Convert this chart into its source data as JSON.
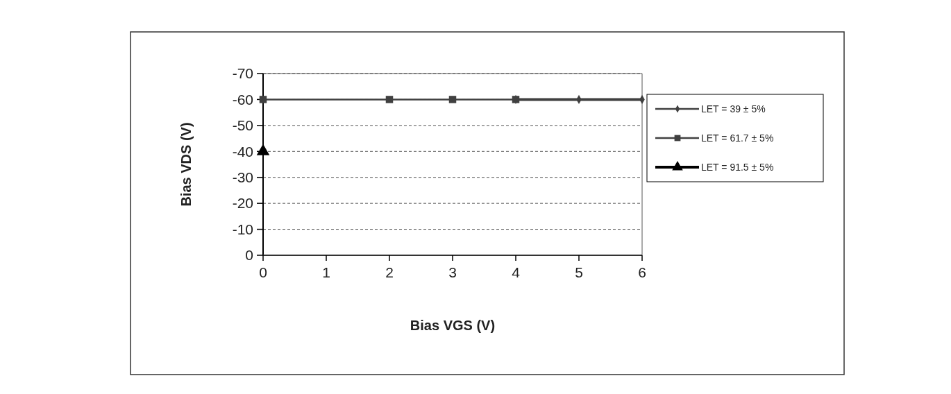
{
  "chart_data": {
    "type": "line",
    "xlabel": "Bias VGS (V)",
    "ylabel": "Bias VDS (V)",
    "xlim": [
      0,
      6
    ],
    "xticks": [
      0,
      1,
      2,
      3,
      4,
      5,
      6
    ],
    "ylim": [
      0,
      -70
    ],
    "yticks": [
      0,
      -10,
      -20,
      -30,
      -40,
      -50,
      -60,
      -70
    ],
    "grid": "y",
    "legend": "right",
    "line_style": "solid",
    "series": [
      {
        "name": "LET = 39 ± 5%",
        "color": "#404040",
        "marker": "diamond",
        "x": [
          4,
          5,
          6
        ],
        "values": [
          -60,
          -60,
          -60
        ]
      },
      {
        "name": "LET = 61.7 ± 5%",
        "color": "#404040",
        "marker": "square",
        "x": [
          0,
          2,
          3,
          4
        ],
        "values": [
          -60,
          -60,
          -60,
          -60
        ]
      },
      {
        "name": "LET = 91.5 ± 5%",
        "color": "#000000",
        "marker": "triangle",
        "x": [
          0
        ],
        "values": [
          -40
        ]
      }
    ]
  }
}
